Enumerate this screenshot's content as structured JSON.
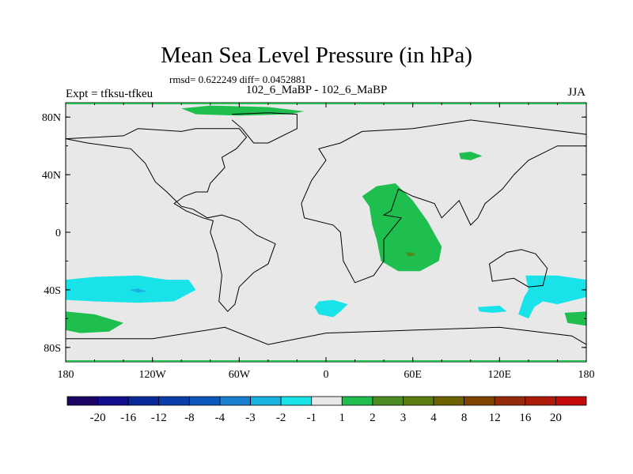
{
  "figure": {
    "title": "Mean Sea Level Pressure (in hPa)",
    "stats": "rmsd= 0.622249 diff= 0.0452881",
    "left_label": "Expt = tfksu-tfkeu",
    "center_label": "102_6_MaBP - 102_6_MaBP",
    "right_label": "JJA"
  },
  "axes": {
    "x_ticks": [
      {
        "value": -180,
        "label": "180"
      },
      {
        "value": -120,
        "label": "120W"
      },
      {
        "value": -60,
        "label": "60W"
      },
      {
        "value": 0,
        "label": "0"
      },
      {
        "value": 60,
        "label": "60E"
      },
      {
        "value": 120,
        "label": "120E"
      },
      {
        "value": 180,
        "label": "180"
      }
    ],
    "y_ticks": [
      {
        "value": 80,
        "label": "80N"
      },
      {
        "value": 40,
        "label": "40N"
      },
      {
        "value": 0,
        "label": "0"
      },
      {
        "value": -40,
        "label": "40S"
      },
      {
        "value": -80,
        "label": "80S"
      }
    ],
    "x_range": [
      -180,
      180
    ],
    "y_range": [
      -90,
      90
    ]
  },
  "colorbar": {
    "colors": [
      "#1d0566",
      "#110f8f",
      "#0a2a9c",
      "#0a3fab",
      "#0c58be",
      "#1a7fd0",
      "#17b2de",
      "#19e3e9",
      "#e8e8e8",
      "#1fbf4f",
      "#4d8c22",
      "#5a7d12",
      "#6c6300",
      "#814400",
      "#952b0a",
      "#ad1a0a",
      "#c40a0a"
    ],
    "labels": [
      "-20",
      "-16",
      "-12",
      "-8",
      "-4",
      "-3",
      "-2",
      "-1",
      "1",
      "2",
      "3",
      "4",
      "8",
      "12",
      "16",
      "20"
    ]
  },
  "anomalies": [
    {
      "name": "north-pole-positive",
      "color": "#1fbf4f",
      "points": [
        [
          -100,
          86
        ],
        [
          -80,
          88
        ],
        [
          -40,
          87
        ],
        [
          -15,
          84
        ],
        [
          -25,
          82
        ],
        [
          -60,
          81
        ],
        [
          -90,
          82
        ]
      ]
    },
    {
      "name": "south-pacific-negative",
      "color": "#19e3e9",
      "points": [
        [
          -180,
          -33
        ],
        [
          -160,
          -31
        ],
        [
          -130,
          -30
        ],
        [
          -110,
          -33
        ],
        [
          -95,
          -33
        ],
        [
          -90,
          -40
        ],
        [
          -105,
          -48
        ],
        [
          -130,
          -49
        ],
        [
          -160,
          -48
        ],
        [
          -180,
          -47
        ]
      ]
    },
    {
      "name": "south-pacific-negative-core",
      "color": "#17b2de",
      "points": [
        [
          -136,
          -40
        ],
        [
          -130,
          -39
        ],
        [
          -124,
          -41
        ],
        [
          -130,
          -42
        ]
      ]
    },
    {
      "name": "south-pacific-positive",
      "color": "#1fbf4f",
      "points": [
        [
          -180,
          -55
        ],
        [
          -160,
          -57
        ],
        [
          -140,
          -63
        ],
        [
          -150,
          -69
        ],
        [
          -170,
          -70
        ],
        [
          -180,
          -68
        ]
      ]
    },
    {
      "name": "atlantic-negative",
      "color": "#19e3e9",
      "points": [
        [
          -5,
          -48
        ],
        [
          5,
          -47
        ],
        [
          15,
          -50
        ],
        [
          10,
          -55
        ],
        [
          5,
          -59
        ],
        [
          -5,
          -57
        ],
        [
          -8,
          -52
        ]
      ]
    },
    {
      "name": "africa-positive",
      "color": "#1fbf4f",
      "points": [
        [
          25,
          25
        ],
        [
          35,
          32
        ],
        [
          48,
          34
        ],
        [
          60,
          22
        ],
        [
          65,
          15
        ],
        [
          70,
          8
        ],
        [
          80,
          -10
        ],
        [
          78,
          -20
        ],
        [
          65,
          -27
        ],
        [
          50,
          -27
        ],
        [
          38,
          -20
        ],
        [
          35,
          -5
        ],
        [
          32,
          5
        ],
        [
          30,
          18
        ]
      ]
    },
    {
      "name": "africa-positive-core",
      "color": "#4d8c22",
      "points": [
        [
          55,
          -14
        ],
        [
          60,
          -14
        ],
        [
          62,
          -16
        ],
        [
          57,
          -17
        ]
      ]
    },
    {
      "name": "asia-positive",
      "color": "#1fbf4f",
      "points": [
        [
          92,
          55
        ],
        [
          100,
          56
        ],
        [
          108,
          53
        ],
        [
          100,
          50
        ],
        [
          93,
          51
        ]
      ]
    },
    {
      "name": "indian-ocean-negative",
      "color": "#19e3e9",
      "points": [
        [
          105,
          -52
        ],
        [
          120,
          -51
        ],
        [
          125,
          -55
        ],
        [
          115,
          -56
        ],
        [
          106,
          -55
        ]
      ]
    },
    {
      "name": "australia-south-negative",
      "color": "#19e3e9",
      "points": [
        [
          138,
          -30
        ],
        [
          160,
          -30
        ],
        [
          180,
          -33
        ],
        [
          180,
          -45
        ],
        [
          160,
          -50
        ],
        [
          150,
          -48
        ],
        [
          144,
          -52
        ],
        [
          140,
          -60
        ],
        [
          133,
          -57
        ],
        [
          137,
          -45
        ],
        [
          140,
          -40
        ]
      ]
    },
    {
      "name": "south-pacific-east-positive",
      "color": "#1fbf4f",
      "points": [
        [
          165,
          -56
        ],
        [
          180,
          -55
        ],
        [
          180,
          -65
        ],
        [
          167,
          -63
        ]
      ]
    }
  ],
  "coastlines": [
    [
      [
        -180,
        65
      ],
      [
        -140,
        67
      ],
      [
        -130,
        72
      ],
      [
        -100,
        70
      ],
      [
        -90,
        72
      ],
      [
        -60,
        72
      ],
      [
        -55,
        66
      ],
      [
        -62,
        58
      ],
      [
        -72,
        52
      ],
      [
        -70,
        45
      ],
      [
        -80,
        34
      ],
      [
        -82,
        28
      ],
      [
        -90,
        28
      ],
      [
        -98,
        25
      ],
      [
        -105,
        20
      ],
      [
        -97,
        15
      ],
      [
        -85,
        10
      ],
      [
        -78,
        8
      ],
      [
        -80,
        0
      ],
      [
        -75,
        -15
      ],
      [
        -72,
        -30
      ],
      [
        -74,
        -48
      ],
      [
        -68,
        -55
      ],
      [
        -63,
        -50
      ],
      [
        -60,
        -38
      ],
      [
        -50,
        -28
      ],
      [
        -40,
        -22
      ],
      [
        -35,
        -8
      ],
      [
        -48,
        -2
      ],
      [
        -60,
        8
      ],
      [
        -72,
        12
      ],
      [
        -82,
        10
      ],
      [
        -92,
        16
      ],
      [
        -100,
        18
      ],
      [
        -110,
        28
      ],
      [
        -118,
        35
      ],
      [
        -125,
        48
      ],
      [
        -135,
        58
      ],
      [
        -150,
        60
      ],
      [
        -165,
        62
      ],
      [
        -180,
        65
      ]
    ],
    [
      [
        -65,
        82
      ],
      [
        -40,
        83
      ],
      [
        -20,
        82
      ],
      [
        -20,
        72
      ],
      [
        -40,
        62
      ],
      [
        -50,
        62
      ],
      [
        -58,
        72
      ],
      [
        -65,
        78
      ]
    ],
    [
      [
        -10,
        36
      ],
      [
        0,
        50
      ],
      [
        -5,
        58
      ],
      [
        10,
        62
      ],
      [
        25,
        70
      ],
      [
        60,
        72
      ],
      [
        100,
        78
      ],
      [
        140,
        73
      ],
      [
        180,
        68
      ],
      [
        180,
        60
      ],
      [
        160,
        60
      ],
      [
        140,
        50
      ],
      [
        130,
        40
      ],
      [
        122,
        30
      ],
      [
        110,
        20
      ],
      [
        105,
        10
      ],
      [
        100,
        5
      ],
      [
        92,
        22
      ],
      [
        80,
        10
      ],
      [
        75,
        20
      ],
      [
        60,
        25
      ],
      [
        50,
        30
      ],
      [
        45,
        15
      ],
      [
        40,
        12
      ],
      [
        52,
        10
      ],
      [
        40,
        -5
      ],
      [
        40,
        -20
      ],
      [
        33,
        -30
      ],
      [
        20,
        -35
      ],
      [
        12,
        -20
      ],
      [
        10,
        0
      ],
      [
        5,
        5
      ],
      [
        -15,
        10
      ],
      [
        -17,
        20
      ],
      [
        -10,
        36
      ]
    ],
    [
      [
        113,
        -22
      ],
      [
        125,
        -14
      ],
      [
        135,
        -12
      ],
      [
        145,
        -15
      ],
      [
        153,
        -25
      ],
      [
        150,
        -37
      ],
      [
        140,
        -38
      ],
      [
        130,
        -32
      ],
      [
        115,
        -34
      ],
      [
        113,
        -22
      ]
    ],
    [
      [
        -180,
        -74
      ],
      [
        -120,
        -74
      ],
      [
        -70,
        -66
      ],
      [
        -40,
        -78
      ],
      [
        0,
        -70
      ],
      [
        60,
        -68
      ],
      [
        120,
        -66
      ],
      [
        170,
        -72
      ],
      [
        180,
        -78
      ]
    ]
  ]
}
